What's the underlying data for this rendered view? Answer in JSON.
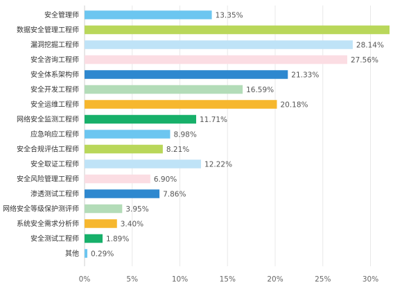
{
  "chart_data": {
    "type": "bar",
    "orientation": "horizontal",
    "categories": [
      "安全管理师",
      "数据安全管理工程师",
      "漏洞挖掘工程师",
      "安全咨询工程师",
      "安全体系架构师",
      "安全开发工程师",
      "安全运维工程师",
      "网络安全监测工程师",
      "应急响应工程师",
      "安全合规评估工程师",
      "安全取证工程师",
      "安全风险管理工程师",
      "渗透测试工程师",
      "网络安全等级保护测评师",
      "系统安全需求分析师",
      "安全测试工程师",
      "其他"
    ],
    "values": [
      13.35,
      32.2,
      28.14,
      27.56,
      21.33,
      16.59,
      20.18,
      11.71,
      8.98,
      8.21,
      12.22,
      6.9,
      7.86,
      3.95,
      3.4,
      1.89,
      0.29
    ],
    "value_labels": [
      "13.35%",
      "",
      "28.14%",
      "27.56%",
      "21.33%",
      "16.59%",
      "20.18%",
      "11.71%",
      "8.98%",
      "8.21%",
      "12.22%",
      "6.90%",
      "7.86%",
      "3.95%",
      "3.40%",
      "1.89%",
      "0.29%"
    ],
    "colors": [
      "#6cc6f0",
      "#b9d75a",
      "#bfe3f7",
      "#fbdde3",
      "#2e88cf",
      "#b3dcb8",
      "#f6b72e",
      "#17b06a"
    ],
    "xlim": [
      0,
      32
    ],
    "x_ticks": [
      0,
      5,
      10,
      15,
      20,
      25,
      30
    ],
    "x_tick_labels": [
      "0%",
      "5%",
      "10%",
      "15%",
      "20%",
      "25%",
      "30%"
    ],
    "grid": true,
    "title": "",
    "xlabel": "",
    "ylabel": ""
  }
}
